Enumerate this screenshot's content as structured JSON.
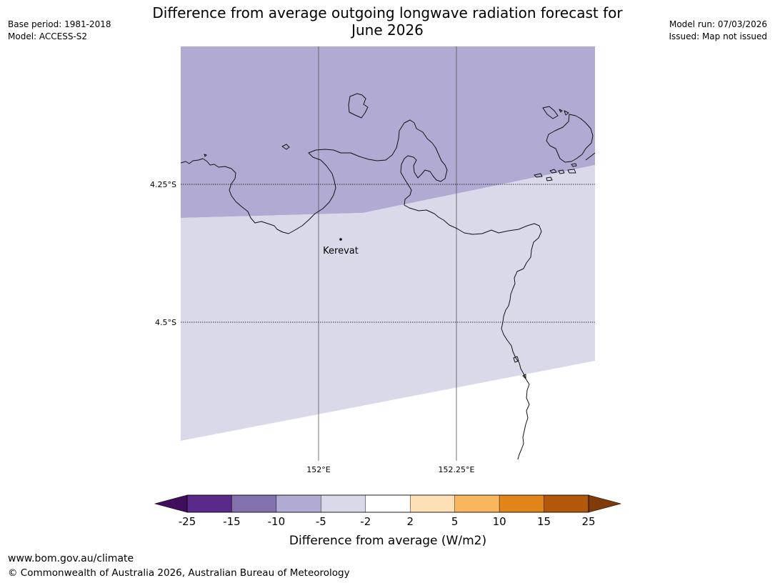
{
  "title_line1": "Difference from average outgoing longwave radiation forecast for",
  "title_line2": "June 2026",
  "meta_left": {
    "base_period": "Base period: 1981-2018",
    "model": "Model: ACCESS-S2"
  },
  "meta_right": {
    "model_run": "Model run: 07/03/2026",
    "issued": "Issued: Map not issued"
  },
  "map": {
    "place_label": "Kerevat",
    "latitude_labels": [
      "4.25°S",
      "4.5°S"
    ],
    "longitude_labels": [
      "152°E",
      "152.25°E"
    ]
  },
  "legend": {
    "title": "Difference from average (W/m2)",
    "tick_labels": [
      "-25",
      "-15",
      "-10",
      "-5",
      "-2",
      "2",
      "5",
      "10",
      "15",
      "25"
    ],
    "colors": [
      "#3f0f5e",
      "#5a2a8a",
      "#8271ad",
      "#b1abd3",
      "#d9d9ea",
      "#ffffff",
      "#fde0b6",
      "#f8b75f",
      "#e1841a",
      "#b3580a",
      "#7f3b08"
    ]
  },
  "footer": {
    "url": "www.bom.gov.au/climate",
    "copyright": "© Commonwealth of Australia 2026, Australian Bureau of Meteorology"
  }
}
